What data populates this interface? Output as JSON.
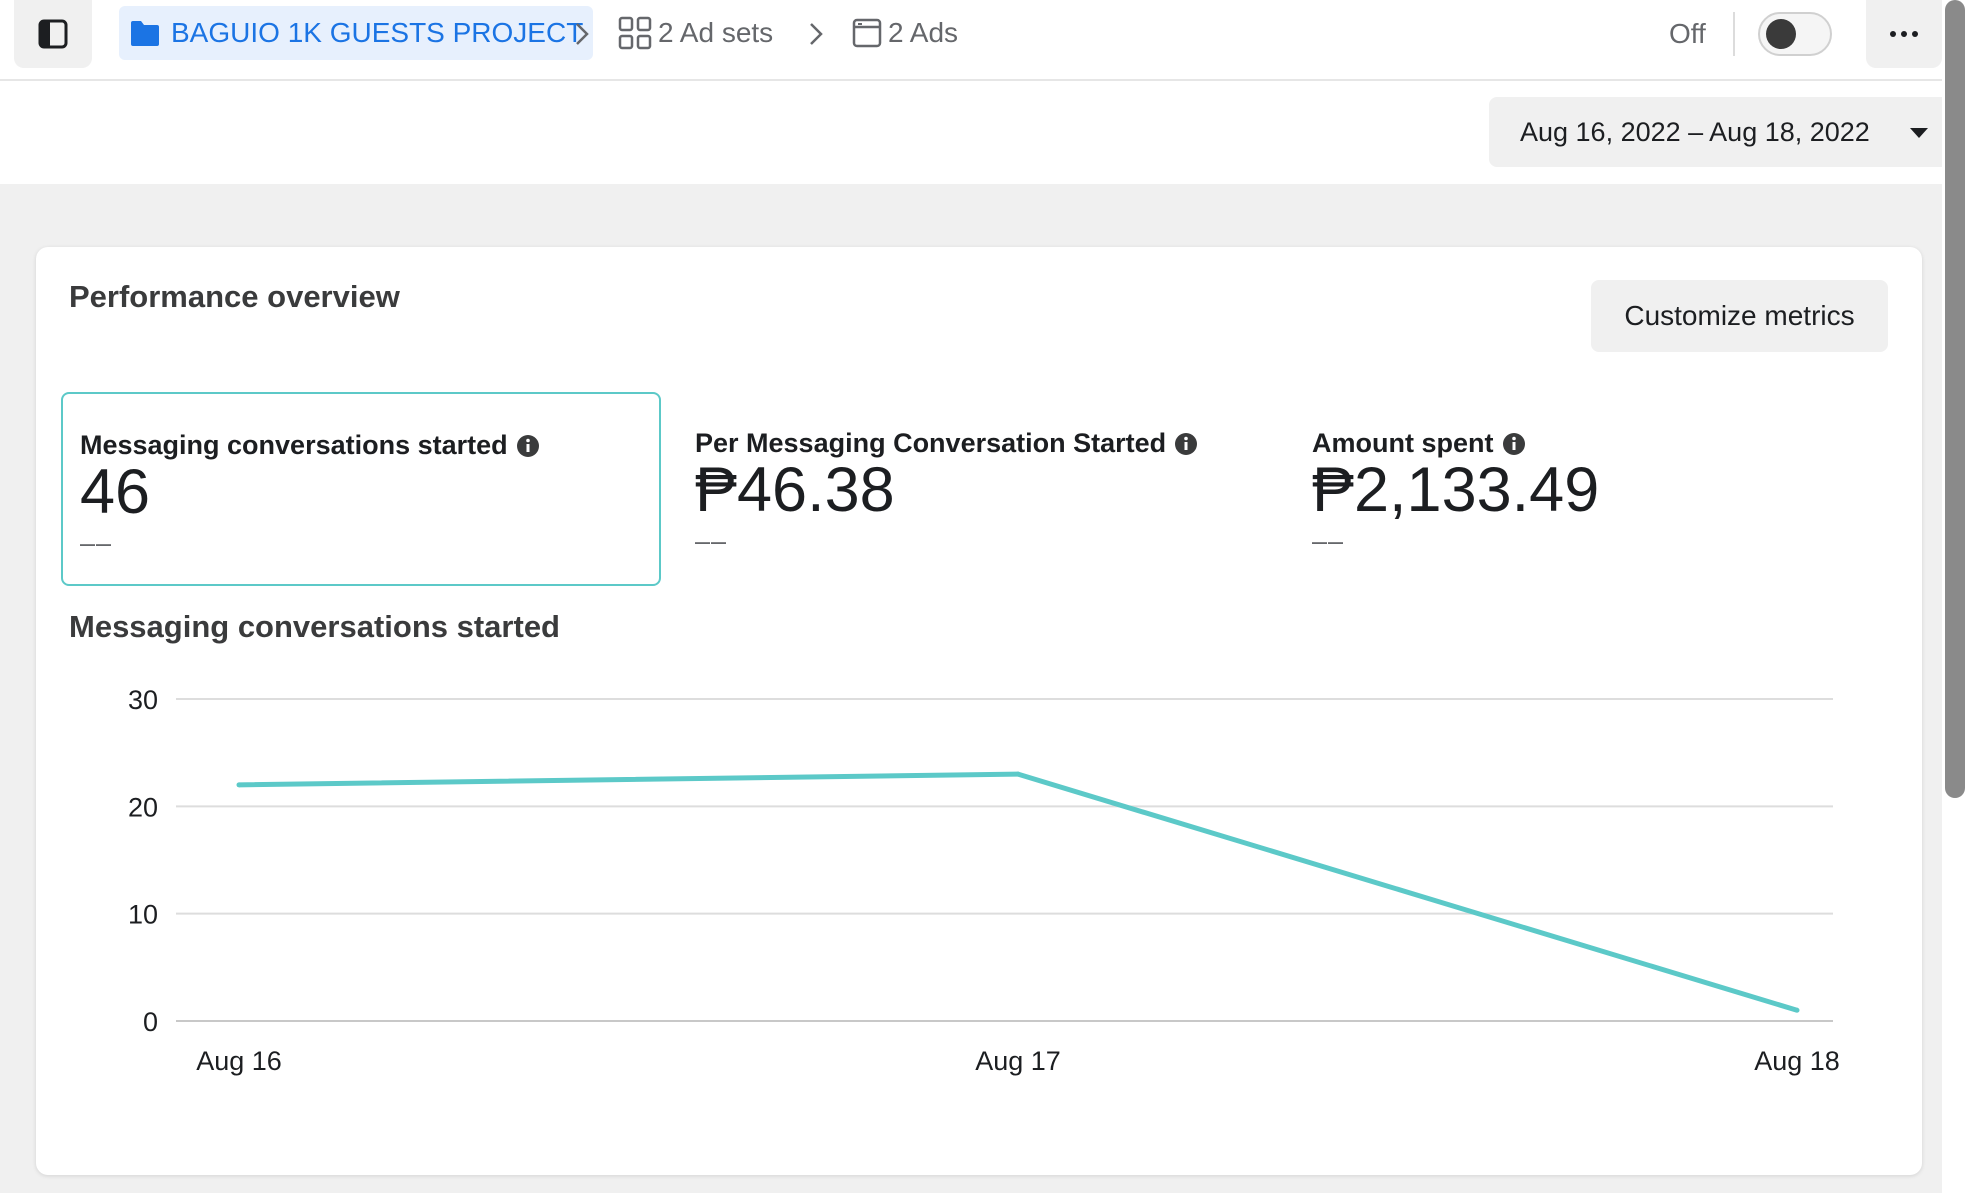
{
  "breadcrumb": {
    "campaign_label": "BAGUIO 1K GUESTS PROJECT",
    "adsets_label": "2 Ad sets",
    "ads_label": "2 Ads"
  },
  "status": {
    "toggle_label": "Off",
    "toggle_on": false
  },
  "date_range": {
    "label": "Aug 16, 2022 – Aug 18, 2022"
  },
  "overview": {
    "title": "Performance overview",
    "customize_label": "Customize metrics",
    "metrics": [
      {
        "label": "Messaging conversations started",
        "value": "46",
        "delta": "––",
        "selected": true
      },
      {
        "label": "Per Messaging Conversation Started",
        "value": "₱46.38",
        "delta": "––",
        "selected": false
      },
      {
        "label": "Amount spent",
        "value": "₱2,133.49",
        "delta": "––",
        "selected": false
      }
    ]
  },
  "colors": {
    "accent": "#1b74e4",
    "series": "#5cc9c8",
    "selected_border": "#5cc9c8"
  },
  "icons": [
    "sidebar-panel-icon",
    "folder-icon",
    "chevron-right-icon",
    "grid-icon",
    "ad-icon",
    "more-icon",
    "info-icon",
    "caret-down-icon"
  ],
  "chart_data": {
    "type": "line",
    "title": "Messaging conversations started",
    "categories": [
      "Aug 16",
      "Aug 17",
      "Aug 18"
    ],
    "series": [
      {
        "values": [
          22,
          23,
          1
        ]
      }
    ],
    "yticks": [
      0,
      10,
      20,
      30
    ],
    "ylim": [
      0,
      30
    ],
    "grid": true,
    "legend": "none"
  }
}
